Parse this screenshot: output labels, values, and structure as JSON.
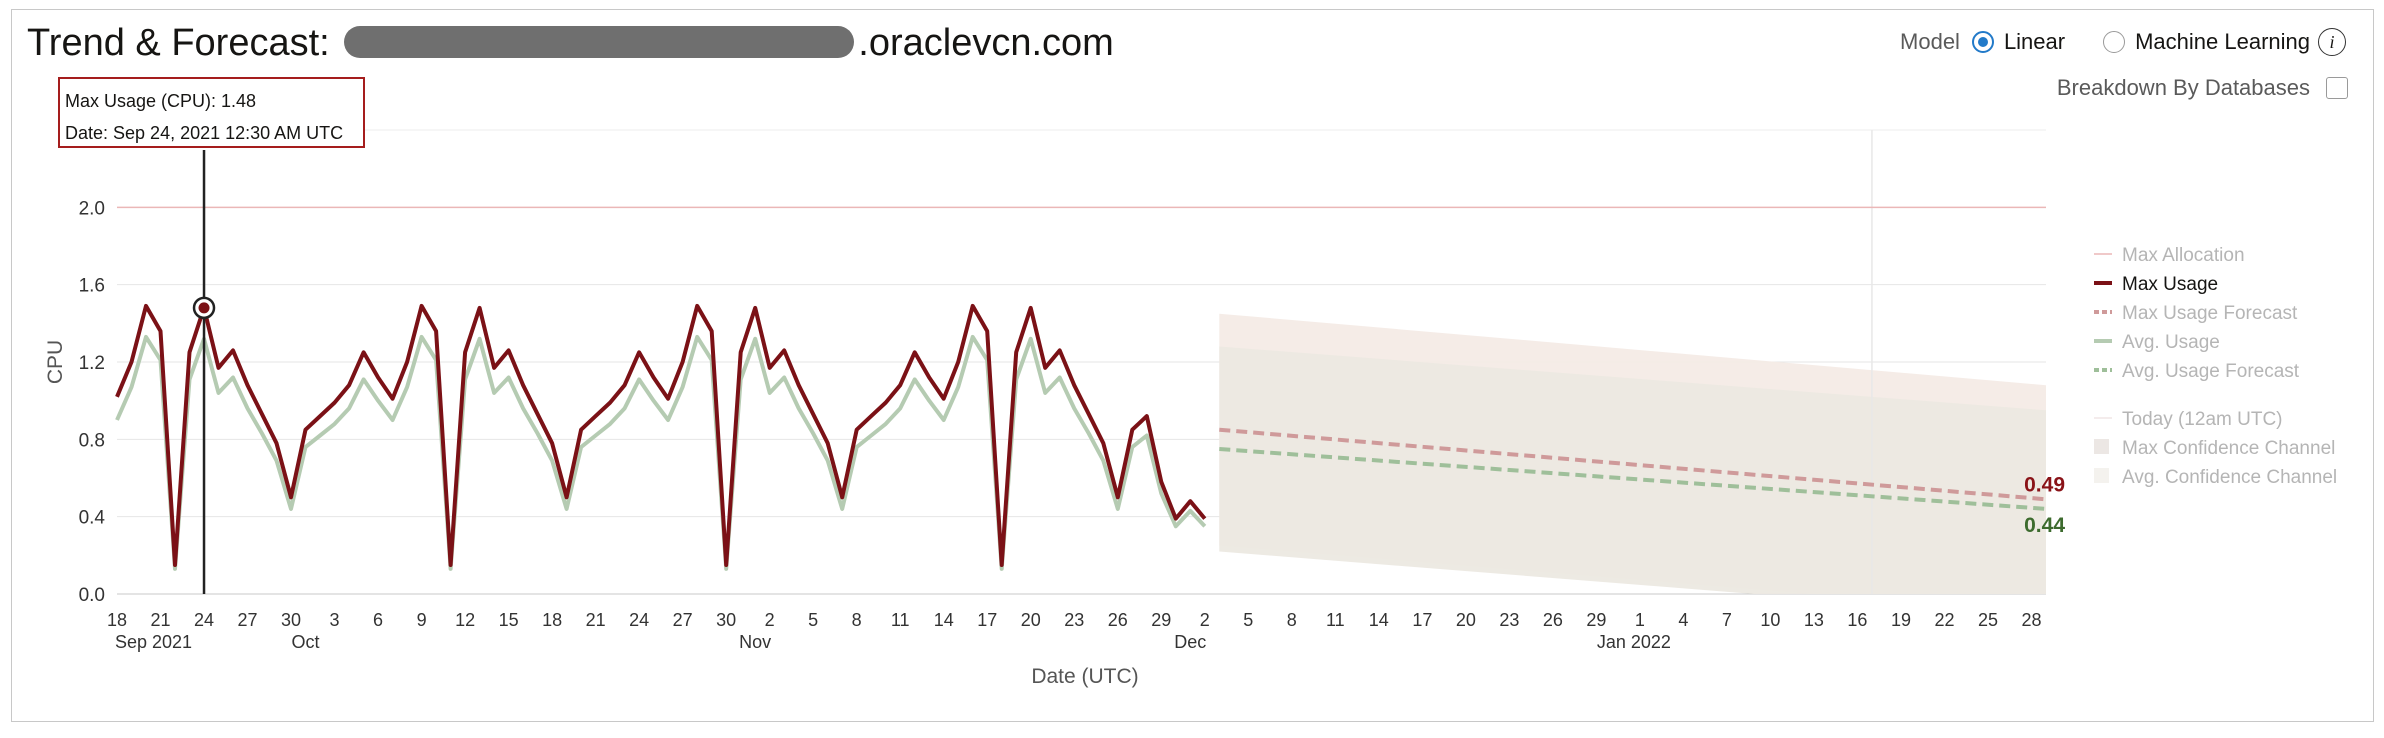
{
  "header": {
    "title_prefix": "Trend & Forecast:",
    "title_suffix": ".oraclevcn.com"
  },
  "controls": {
    "model_label": "Model",
    "options": [
      {
        "label": "Linear",
        "selected": true
      },
      {
        "label": "Machine Learning",
        "selected": false
      }
    ],
    "info_icon_glyph": "i",
    "breakdown_label": "Breakdown By Databases",
    "breakdown_checked": false
  },
  "tooltip": {
    "line1": "Max Usage (CPU): 1.48",
    "line2": "Date: Sep 24, 2021 12:30 AM UTC"
  },
  "colors": {
    "max_usage": "#7b1116",
    "avg_usage": "#b5cbb2",
    "max_forecast": "#cf9a9a",
    "avg_forecast": "#9fbf9a",
    "max_allocation": "#ebb7b7",
    "confidence": "#ece9e1",
    "label_max": "#8a1318",
    "label_avg": "#3d6b2e"
  },
  "chart_data": {
    "type": "line",
    "ylabel": "CPU",
    "xlabel": "Date (UTC)",
    "ylim": [
      0,
      2.4
    ],
    "yticks": [
      0.0,
      0.4,
      0.8,
      1.2,
      1.6,
      2.0
    ],
    "ytick_labels": [
      "0.0",
      "0.4",
      "0.8",
      "1.2",
      "1.6",
      "2.0"
    ],
    "x_start": "2021-09-18",
    "x_end": "2022-01-29",
    "today": "2022-01-17",
    "xticks": [
      {
        "date": "2021-09-18",
        "label": "18"
      },
      {
        "date": "2021-09-21",
        "label": "21"
      },
      {
        "date": "2021-09-24",
        "label": "24"
      },
      {
        "date": "2021-09-27",
        "label": "27"
      },
      {
        "date": "2021-09-30",
        "label": "30"
      },
      {
        "date": "2021-10-03",
        "label": "3"
      },
      {
        "date": "2021-10-06",
        "label": "6"
      },
      {
        "date": "2021-10-09",
        "label": "9"
      },
      {
        "date": "2021-10-12",
        "label": "12"
      },
      {
        "date": "2021-10-15",
        "label": "15"
      },
      {
        "date": "2021-10-18",
        "label": "18"
      },
      {
        "date": "2021-10-21",
        "label": "21"
      },
      {
        "date": "2021-10-24",
        "label": "24"
      },
      {
        "date": "2021-10-27",
        "label": "27"
      },
      {
        "date": "2021-10-30",
        "label": "30"
      },
      {
        "date": "2021-11-02",
        "label": "2"
      },
      {
        "date": "2021-11-05",
        "label": "5"
      },
      {
        "date": "2021-11-08",
        "label": "8"
      },
      {
        "date": "2021-11-11",
        "label": "11"
      },
      {
        "date": "2021-11-14",
        "label": "14"
      },
      {
        "date": "2021-11-17",
        "label": "17"
      },
      {
        "date": "2021-11-20",
        "label": "20"
      },
      {
        "date": "2021-11-23",
        "label": "23"
      },
      {
        "date": "2021-11-26",
        "label": "26"
      },
      {
        "date": "2021-11-29",
        "label": "29"
      },
      {
        "date": "2021-12-02",
        "label": "2"
      },
      {
        "date": "2021-12-05",
        "label": "5"
      },
      {
        "date": "2021-12-08",
        "label": "8"
      },
      {
        "date": "2021-12-11",
        "label": "11"
      },
      {
        "date": "2021-12-14",
        "label": "14"
      },
      {
        "date": "2021-12-17",
        "label": "17"
      },
      {
        "date": "2021-12-20",
        "label": "20"
      },
      {
        "date": "2021-12-23",
        "label": "23"
      },
      {
        "date": "2021-12-26",
        "label": "26"
      },
      {
        "date": "2021-12-29",
        "label": "29"
      },
      {
        "date": "2022-01-01",
        "label": "1"
      },
      {
        "date": "2022-01-04",
        "label": "4"
      },
      {
        "date": "2022-01-07",
        "label": "7"
      },
      {
        "date": "2022-01-10",
        "label": "10"
      },
      {
        "date": "2022-01-13",
        "label": "13"
      },
      {
        "date": "2022-01-16",
        "label": "16"
      },
      {
        "date": "2022-01-19",
        "label": "19"
      },
      {
        "date": "2022-01-22",
        "label": "22"
      },
      {
        "date": "2022-01-25",
        "label": "25"
      },
      {
        "date": "2022-01-28",
        "label": "28"
      }
    ],
    "month_labels": [
      {
        "date": "2021-09-18",
        "label": "Sep 2021"
      },
      {
        "date": "2021-10-01",
        "label": "Oct"
      },
      {
        "date": "2021-11-01",
        "label": "Nov"
      },
      {
        "date": "2021-12-01",
        "label": "Dec"
      },
      {
        "date": "2022-01-01",
        "label": "Jan 2022"
      }
    ],
    "max_allocation": 2.0,
    "series": [
      {
        "name": "Max Usage",
        "points": [
          [
            "2021-09-18",
            1.02
          ],
          [
            "2021-09-19",
            1.2
          ],
          [
            "2021-09-20",
            1.49
          ],
          [
            "2021-09-21",
            1.36
          ],
          [
            "2021-09-22",
            0.15
          ],
          [
            "2021-09-23",
            1.25
          ],
          [
            "2021-09-24",
            1.48
          ],
          [
            "2021-09-25",
            1.17
          ],
          [
            "2021-09-26",
            1.26
          ],
          [
            "2021-09-27",
            1.08
          ],
          [
            "2021-09-28",
            0.93
          ],
          [
            "2021-09-29",
            0.78
          ],
          [
            "2021-09-30",
            0.5
          ],
          [
            "2021-10-01",
            0.85
          ],
          [
            "2021-10-02",
            0.92
          ],
          [
            "2021-10-03",
            0.99
          ],
          [
            "2021-10-04",
            1.08
          ],
          [
            "2021-10-05",
            1.25
          ],
          [
            "2021-10-06",
            1.12
          ],
          [
            "2021-10-07",
            1.01
          ],
          [
            "2021-10-08",
            1.2
          ],
          [
            "2021-10-09",
            1.49
          ],
          [
            "2021-10-10",
            1.36
          ],
          [
            "2021-10-11",
            0.15
          ],
          [
            "2021-10-12",
            1.25
          ],
          [
            "2021-10-13",
            1.48
          ],
          [
            "2021-10-14",
            1.17
          ],
          [
            "2021-10-15",
            1.26
          ],
          [
            "2021-10-16",
            1.08
          ],
          [
            "2021-10-17",
            0.93
          ],
          [
            "2021-10-18",
            0.78
          ],
          [
            "2021-10-19",
            0.5
          ],
          [
            "2021-10-20",
            0.85
          ],
          [
            "2021-10-21",
            0.92
          ],
          [
            "2021-10-22",
            0.99
          ],
          [
            "2021-10-23",
            1.08
          ],
          [
            "2021-10-24",
            1.25
          ],
          [
            "2021-10-25",
            1.12
          ],
          [
            "2021-10-26",
            1.01
          ],
          [
            "2021-10-27",
            1.2
          ],
          [
            "2021-10-28",
            1.49
          ],
          [
            "2021-10-29",
            1.36
          ],
          [
            "2021-10-30",
            0.15
          ],
          [
            "2021-10-31",
            1.25
          ],
          [
            "2021-11-01",
            1.48
          ],
          [
            "2021-11-02",
            1.17
          ],
          [
            "2021-11-03",
            1.26
          ],
          [
            "2021-11-04",
            1.08
          ],
          [
            "2021-11-05",
            0.93
          ],
          [
            "2021-11-06",
            0.78
          ],
          [
            "2021-11-07",
            0.5
          ],
          [
            "2021-11-08",
            0.85
          ],
          [
            "2021-11-09",
            0.92
          ],
          [
            "2021-11-10",
            0.99
          ],
          [
            "2021-11-11",
            1.08
          ],
          [
            "2021-11-12",
            1.25
          ],
          [
            "2021-11-13",
            1.12
          ],
          [
            "2021-11-14",
            1.01
          ],
          [
            "2021-11-15",
            1.2
          ],
          [
            "2021-11-16",
            1.49
          ],
          [
            "2021-11-17",
            1.36
          ],
          [
            "2021-11-18",
            0.15
          ],
          [
            "2021-11-19",
            1.25
          ],
          [
            "2021-11-20",
            1.48
          ],
          [
            "2021-11-21",
            1.17
          ],
          [
            "2021-11-22",
            1.26
          ],
          [
            "2021-11-23",
            1.08
          ],
          [
            "2021-11-24",
            0.93
          ],
          [
            "2021-11-25",
            0.78
          ],
          [
            "2021-11-26",
            0.5
          ],
          [
            "2021-11-27",
            0.85
          ],
          [
            "2021-11-28",
            0.92
          ],
          [
            "2021-11-29",
            0.58
          ],
          [
            "2021-11-30",
            0.39
          ],
          [
            "2021-12-01",
            0.48
          ],
          [
            "2021-12-02",
            0.39
          ]
        ]
      },
      {
        "name": "Avg. Usage",
        "points": [
          [
            "2021-09-18",
            0.9
          ],
          [
            "2021-09-19",
            1.07
          ],
          [
            "2021-09-20",
            1.33
          ],
          [
            "2021-09-21",
            1.21
          ],
          [
            "2021-09-22",
            0.13
          ],
          [
            "2021-09-23",
            1.11
          ],
          [
            "2021-09-24",
            1.32
          ],
          [
            "2021-09-25",
            1.04
          ],
          [
            "2021-09-26",
            1.12
          ],
          [
            "2021-09-27",
            0.96
          ],
          [
            "2021-09-28",
            0.83
          ],
          [
            "2021-09-29",
            0.69
          ],
          [
            "2021-09-30",
            0.44
          ],
          [
            "2021-10-01",
            0.76
          ],
          [
            "2021-10-02",
            0.82
          ],
          [
            "2021-10-03",
            0.88
          ],
          [
            "2021-10-04",
            0.96
          ],
          [
            "2021-10-05",
            1.11
          ],
          [
            "2021-10-06",
            1.0
          ],
          [
            "2021-10-07",
            0.9
          ],
          [
            "2021-10-08",
            1.07
          ],
          [
            "2021-10-09",
            1.33
          ],
          [
            "2021-10-10",
            1.21
          ],
          [
            "2021-10-11",
            0.13
          ],
          [
            "2021-10-12",
            1.11
          ],
          [
            "2021-10-13",
            1.32
          ],
          [
            "2021-10-14",
            1.04
          ],
          [
            "2021-10-15",
            1.12
          ],
          [
            "2021-10-16",
            0.96
          ],
          [
            "2021-10-17",
            0.83
          ],
          [
            "2021-10-18",
            0.69
          ],
          [
            "2021-10-19",
            0.44
          ],
          [
            "2021-10-20",
            0.76
          ],
          [
            "2021-10-21",
            0.82
          ],
          [
            "2021-10-22",
            0.88
          ],
          [
            "2021-10-23",
            0.96
          ],
          [
            "2021-10-24",
            1.11
          ],
          [
            "2021-10-25",
            1.0
          ],
          [
            "2021-10-26",
            0.9
          ],
          [
            "2021-10-27",
            1.07
          ],
          [
            "2021-10-28",
            1.33
          ],
          [
            "2021-10-29",
            1.21
          ],
          [
            "2021-10-30",
            0.13
          ],
          [
            "2021-10-31",
            1.11
          ],
          [
            "2021-11-01",
            1.32
          ],
          [
            "2021-11-02",
            1.04
          ],
          [
            "2021-11-03",
            1.12
          ],
          [
            "2021-11-04",
            0.96
          ],
          [
            "2021-11-05",
            0.83
          ],
          [
            "2021-11-06",
            0.69
          ],
          [
            "2021-11-07",
            0.44
          ],
          [
            "2021-11-08",
            0.76
          ],
          [
            "2021-11-09",
            0.82
          ],
          [
            "2021-11-10",
            0.88
          ],
          [
            "2021-11-11",
            0.96
          ],
          [
            "2021-11-12",
            1.11
          ],
          [
            "2021-11-13",
            1.0
          ],
          [
            "2021-11-14",
            0.9
          ],
          [
            "2021-11-15",
            1.07
          ],
          [
            "2021-11-16",
            1.33
          ],
          [
            "2021-11-17",
            1.21
          ],
          [
            "2021-11-18",
            0.13
          ],
          [
            "2021-11-19",
            1.11
          ],
          [
            "2021-11-20",
            1.32
          ],
          [
            "2021-11-21",
            1.04
          ],
          [
            "2021-11-22",
            1.12
          ],
          [
            "2021-11-23",
            0.96
          ],
          [
            "2021-11-24",
            0.83
          ],
          [
            "2021-11-25",
            0.69
          ],
          [
            "2021-11-26",
            0.44
          ],
          [
            "2021-11-27",
            0.76
          ],
          [
            "2021-11-28",
            0.82
          ],
          [
            "2021-11-29",
            0.52
          ],
          [
            "2021-11-30",
            0.35
          ],
          [
            "2021-12-01",
            0.43
          ],
          [
            "2021-12-02",
            0.35
          ]
        ]
      },
      {
        "name": "Max Usage Forecast",
        "points": [
          [
            "2021-12-03",
            0.85
          ],
          [
            "2022-01-29",
            0.49
          ]
        ]
      },
      {
        "name": "Avg. Usage Forecast",
        "points": [
          [
            "2021-12-03",
            0.75
          ],
          [
            "2022-01-29",
            0.44
          ]
        ]
      },
      {
        "name": "Max Confidence Channel",
        "upper": [
          [
            "2021-12-03",
            1.45
          ],
          [
            "2022-01-29",
            1.08
          ]
        ],
        "lower": [
          [
            "2021-12-03",
            0.25
          ],
          [
            "2022-01-29",
            -0.1
          ]
        ]
      },
      {
        "name": "Avg. Confidence Channel",
        "upper": [
          [
            "2021-12-03",
            1.28
          ],
          [
            "2022-01-29",
            0.95
          ]
        ],
        "lower": [
          [
            "2021-12-03",
            0.22
          ],
          [
            "2022-01-29",
            -0.12
          ]
        ]
      }
    ],
    "end_labels": [
      {
        "value": 0.49,
        "label": "0.49"
      },
      {
        "value": 0.44,
        "label": "0.44"
      }
    ],
    "highlight": {
      "date": "2021-09-24",
      "value": 1.48
    },
    "legend": {
      "position": "right",
      "items": [
        {
          "label": "Max Allocation",
          "style": "allocation",
          "faded": true
        },
        {
          "label": "Max Usage",
          "style": "max",
          "faded": false
        },
        {
          "label": "Max Usage Forecast",
          "style": "max-forecast",
          "faded": true
        },
        {
          "label": "Avg. Usage",
          "style": "avg",
          "faded": true
        },
        {
          "label": "Avg. Usage Forecast",
          "style": "avg-forecast",
          "faded": true
        },
        {
          "label": "Today (12am UTC)",
          "style": "today",
          "faded": true
        },
        {
          "label": "Max Confidence Channel",
          "style": "box",
          "faded": true
        },
        {
          "label": "Avg. Confidence Channel",
          "style": "box-light",
          "faded": true
        }
      ]
    }
  }
}
